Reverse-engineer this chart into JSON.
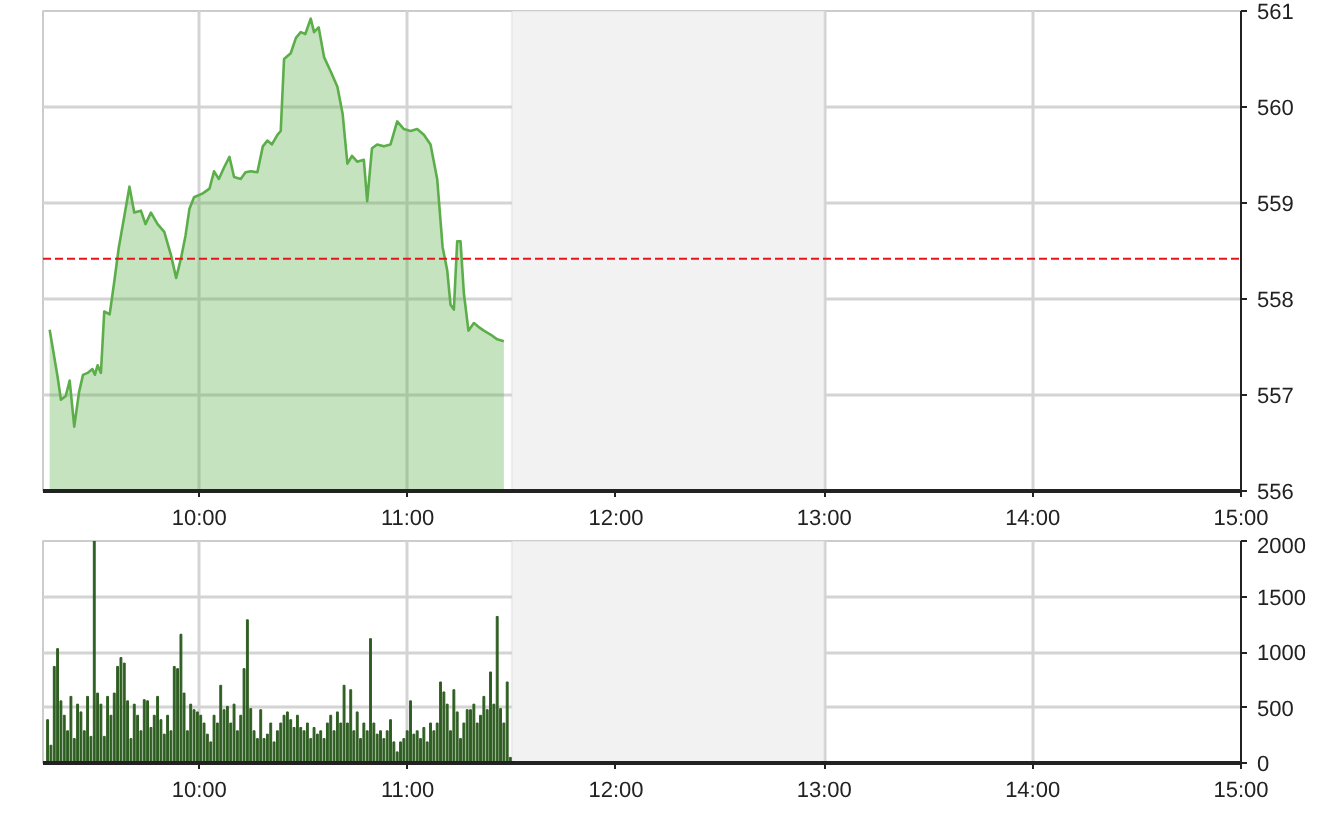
{
  "chart_data": [
    {
      "type": "area",
      "xlim": [
        9.25,
        15
      ],
      "xticks": [
        {
          "value": 10,
          "label": "10:00"
        },
        {
          "value": 11,
          "label": "11:00"
        },
        {
          "value": 12,
          "label": "12:00"
        },
        {
          "value": 13,
          "label": "13:00"
        },
        {
          "value": 14,
          "label": "14:00"
        },
        {
          "value": 15,
          "label": "15:00"
        }
      ],
      "ylim": [
        556,
        561
      ],
      "yticks": [
        556,
        557,
        558,
        559,
        560,
        561
      ],
      "grid": true,
      "ref_lines": [
        {
          "axis": "y",
          "value": 558.42,
          "color": "#e8141b",
          "line_style": "dashed"
        }
      ],
      "bands": [
        {
          "axis": "x",
          "from": 11.5,
          "to": 13,
          "color": "#f2f2f2"
        }
      ],
      "series": [
        {
          "color": "#5cae4a",
          "x": [
            9.282,
            9.32,
            9.336,
            9.359,
            9.378,
            9.4,
            9.423,
            9.442,
            9.464,
            9.487,
            9.499,
            9.512,
            9.528,
            9.544,
            9.57,
            9.592,
            9.614,
            9.64,
            9.665,
            9.688,
            9.72,
            9.742,
            9.768,
            9.8,
            9.832,
            9.864,
            9.889,
            9.912,
            9.934,
            9.953,
            9.975,
            10.017,
            10.049,
            10.071,
            10.094,
            10.119,
            10.145,
            10.167,
            10.199,
            10.222,
            10.247,
            10.279,
            10.305,
            10.327,
            10.349,
            10.375,
            10.391,
            10.407,
            10.439,
            10.464,
            10.487,
            10.509,
            10.535,
            10.551,
            10.573,
            10.599,
            10.631,
            10.663,
            10.688,
            10.711,
            10.733,
            10.758,
            10.79,
            10.806,
            10.829,
            10.854,
            10.886,
            10.918,
            10.95,
            10.982,
            11.014,
            11.046,
            11.078,
            11.11,
            11.142,
            11.168,
            11.19,
            11.206,
            11.222,
            11.238,
            11.254,
            11.27,
            11.292,
            11.318,
            11.34,
            11.366,
            11.398,
            11.43,
            11.462
          ],
          "values": [
            557.68,
            557.19,
            556.95,
            556.99,
            557.15,
            556.67,
            557.03,
            557.21,
            557.23,
            557.27,
            557.21,
            557.31,
            557.23,
            557.87,
            557.84,
            558.18,
            558.54,
            558.86,
            559.17,
            558.9,
            558.92,
            558.78,
            558.9,
            558.78,
            558.7,
            558.46,
            558.22,
            558.42,
            558.66,
            558.94,
            559.06,
            559.1,
            559.15,
            559.33,
            559.25,
            559.37,
            559.48,
            559.27,
            559.25,
            559.32,
            559.33,
            559.32,
            559.59,
            559.65,
            559.61,
            559.71,
            559.75,
            560.5,
            560.56,
            560.72,
            560.78,
            560.76,
            560.92,
            560.78,
            560.83,
            560.52,
            560.37,
            560.21,
            559.93,
            559.41,
            559.49,
            559.43,
            559.45,
            559.02,
            559.57,
            559.61,
            559.59,
            559.61,
            559.85,
            559.77,
            559.75,
            559.77,
            559.71,
            559.61,
            559.25,
            558.54,
            558.3,
            557.94,
            557.89,
            558.6,
            558.6,
            558.06,
            557.67,
            557.75,
            557.71,
            557.67,
            557.63,
            557.58,
            557.56
          ]
        }
      ]
    },
    {
      "type": "bar",
      "xlim": [
        9.25,
        15
      ],
      "xticks": [
        {
          "value": 10,
          "label": "10:00"
        },
        {
          "value": 11,
          "label": "11:00"
        },
        {
          "value": 12,
          "label": "12:00"
        },
        {
          "value": 13,
          "label": "13:00"
        },
        {
          "value": 14,
          "label": "14:00"
        },
        {
          "value": 15,
          "label": "15:00"
        }
      ],
      "ylim": [
        0,
        2000
      ],
      "yticks": [
        0,
        500,
        1000,
        1500,
        2000
      ],
      "grid": true,
      "bands": [
        {
          "axis": "x",
          "from": 11.5,
          "to": 13,
          "color": "#f2f2f2"
        }
      ],
      "series": [
        {
          "color": "#2f5e22",
          "x": [
            9.272,
            9.288,
            9.304,
            9.32,
            9.336,
            9.352,
            9.368,
            9.384,
            9.4,
            9.416,
            9.432,
            9.448,
            9.464,
            9.48,
            9.496,
            9.512,
            9.528,
            9.544,
            9.56,
            9.576,
            9.592,
            9.608,
            9.624,
            9.64,
            9.656,
            9.672,
            9.688,
            9.704,
            9.72,
            9.736,
            9.752,
            9.768,
            9.784,
            9.8,
            9.816,
            9.832,
            9.848,
            9.864,
            9.88,
            9.896,
            9.912,
            9.927,
            9.943,
            9.959,
            9.975,
            9.991,
            10.007,
            10.023,
            10.039,
            10.055,
            10.071,
            10.087,
            10.103,
            10.119,
            10.135,
            10.151,
            10.167,
            10.183,
            10.199,
            10.215,
            10.231,
            10.247,
            10.263,
            10.279,
            10.295,
            10.311,
            10.327,
            10.343,
            10.359,
            10.375,
            10.391,
            10.407,
            10.423,
            10.439,
            10.455,
            10.471,
            10.487,
            10.503,
            10.519,
            10.535,
            10.551,
            10.567,
            10.583,
            10.599,
            10.615,
            10.631,
            10.647,
            10.663,
            10.679,
            10.695,
            10.711,
            10.727,
            10.742,
            10.758,
            10.774,
            10.79,
            10.806,
            10.822,
            10.838,
            10.854,
            10.87,
            10.886,
            10.902,
            10.918,
            10.934,
            10.95,
            10.966,
            10.982,
            10.998,
            11.014,
            11.03,
            11.046,
            11.062,
            11.078,
            11.094,
            11.11,
            11.126,
            11.142,
            11.158,
            11.174,
            11.19,
            11.206,
            11.222,
            11.238,
            11.254,
            11.27,
            11.286,
            11.302,
            11.318,
            11.334,
            11.35,
            11.366,
            11.382,
            11.398,
            11.414,
            11.43,
            11.446,
            11.462,
            11.478,
            11.493
          ],
          "values": [
            390,
            160,
            870,
            1030,
            560,
            430,
            290,
            600,
            220,
            530,
            460,
            290,
            600,
            240,
            2000,
            630,
            530,
            240,
            600,
            430,
            630,
            870,
            950,
            900,
            560,
            220,
            530,
            430,
            290,
            570,
            560,
            320,
            430,
            600,
            390,
            260,
            430,
            290,
            870,
            850,
            1160,
            630,
            290,
            530,
            480,
            460,
            430,
            360,
            260,
            190,
            430,
            360,
            700,
            480,
            510,
            360,
            530,
            290,
            430,
            850,
            1290,
            490,
            290,
            220,
            480,
            220,
            260,
            360,
            190,
            290,
            360,
            430,
            460,
            390,
            320,
            430,
            320,
            290,
            360,
            220,
            320,
            260,
            290,
            220,
            360,
            430,
            290,
            460,
            360,
            700,
            360,
            660,
            290,
            460,
            220,
            360,
            290,
            1120,
            360,
            260,
            290,
            220,
            290,
            390,
            190,
            100,
            190,
            220,
            290,
            560,
            260,
            290,
            220,
            320,
            190,
            360,
            290,
            360,
            730,
            640,
            530,
            290,
            660,
            460,
            220,
            360,
            480,
            480,
            530,
            360,
            430,
            600,
            480,
            820,
            530,
            1320,
            490,
            360,
            730,
            50
          ]
        }
      ]
    }
  ]
}
